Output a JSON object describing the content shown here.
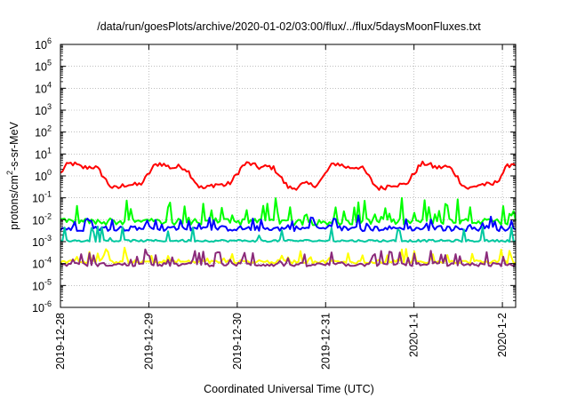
{
  "chart_data": {
    "type": "line",
    "title": "/data/run/goesPlots/archive/2020-01-02/03:00/flux/../flux/5daysMoonFluxes.txt",
    "xlabel": "Coordinated Universal Time (UTC)",
    "ylabel_parts": [
      "protons/cm",
      "2",
      "-s-sr-MeV"
    ],
    "yscale": "log",
    "ylim_exp": [
      -6,
      6
    ],
    "y_tick_exponents": [
      -6,
      -5,
      -4,
      -3,
      -2,
      -1,
      0,
      1,
      2,
      3,
      4,
      5,
      6
    ],
    "x_ticks": [
      "2019-12-28",
      "2019-12-29",
      "2019-12-30",
      "2019-12-31",
      "2020-1-1",
      "2020-1-2"
    ],
    "x_range_days": [
      0,
      5.15
    ],
    "grid": true,
    "series": [
      {
        "color": "#ff0000",
        "base": 1.0,
        "amp": 0.55,
        "noise": 0.12,
        "spike": 0,
        "spikeAmp": 0
      },
      {
        "color": "#00ff00",
        "base": 0.008,
        "amp": 0,
        "noise": 0.15,
        "spike": 0.28,
        "spikeAmp": 1.0
      },
      {
        "color": "#0000ff",
        "base": 0.004,
        "amp": 0,
        "noise": 0.12,
        "spike": 0.22,
        "spikeAmp": 0.55
      },
      {
        "color": "#00c8a0",
        "base": 0.0011,
        "amp": 0,
        "noise": 0.05,
        "spike": 0.1,
        "spikeAmp": 0.7
      },
      {
        "color": "#ffff00",
        "base": 0.00012,
        "amp": 0,
        "noise": 0.08,
        "spike": 0.22,
        "spikeAmp": 0.6
      },
      {
        "color": "#8b2a7a",
        "base": 9e-05,
        "amp": 0,
        "noise": 0.08,
        "spike": 0.25,
        "spikeAmp": 0.65
      }
    ]
  }
}
